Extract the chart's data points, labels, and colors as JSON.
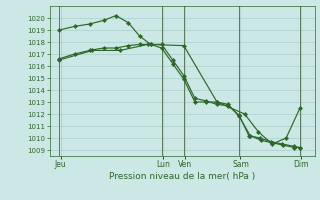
{
  "bg_color": "#cce8e6",
  "grid_color_major": "#aacfcc",
  "grid_color_minor": "#bbdbd8",
  "line_color": "#2d6629",
  "title": "Pression niveau de la mer( hPa )",
  "ylim": [
    1008.5,
    1021.0
  ],
  "yticks": [
    1009,
    1010,
    1011,
    1012,
    1013,
    1014,
    1015,
    1016,
    1017,
    1018,
    1019,
    1020
  ],
  "xlim": [
    -0.05,
    9.55
  ],
  "xtick_labels": [
    "Jeu",
    "Lun",
    "Ven",
    "Sam",
    "Dim"
  ],
  "xtick_positions": [
    0.35,
    4.05,
    4.85,
    6.85,
    9.05
  ],
  "vline_positions": [
    0.3,
    4.0,
    4.8,
    6.8,
    9.0
  ],
  "series1": {
    "x": [
      0.3,
      0.85,
      1.4,
      1.9,
      2.35,
      2.8,
      3.2,
      3.6,
      4.0,
      4.4,
      4.8,
      5.2,
      5.6,
      6.0,
      6.4,
      6.8,
      7.2,
      7.6,
      8.0,
      8.4,
      8.8,
      9.0
    ],
    "y": [
      1019.0,
      1019.3,
      1019.5,
      1019.8,
      1020.2,
      1019.6,
      1018.5,
      1017.8,
      1017.5,
      1016.2,
      1014.9,
      1013.0,
      1013.0,
      1013.0,
      1012.8,
      1011.8,
      1010.2,
      1009.8,
      1009.6,
      1009.4,
      1009.2,
      1009.2
    ]
  },
  "series2": {
    "x": [
      0.3,
      0.85,
      1.4,
      1.9,
      2.35,
      2.8,
      3.2,
      3.6,
      4.0,
      4.4,
      4.8,
      5.2,
      5.6,
      6.0,
      6.4,
      6.8,
      7.15,
      7.55,
      7.95,
      8.35,
      8.8,
      9.0
    ],
    "y": [
      1016.6,
      1017.0,
      1017.3,
      1017.5,
      1017.5,
      1017.7,
      1017.8,
      1017.8,
      1017.8,
      1016.5,
      1015.2,
      1013.3,
      1013.1,
      1012.8,
      1012.7,
      1011.9,
      1010.2,
      1010.0,
      1009.7,
      1009.5,
      1009.3,
      1009.2
    ]
  },
  "series3": {
    "x": [
      0.3,
      1.5,
      2.5,
      3.5,
      4.8,
      6.0,
      7.0,
      7.5,
      8.0,
      8.5,
      9.0
    ],
    "y": [
      1016.5,
      1017.3,
      1017.3,
      1017.8,
      1017.7,
      1013.0,
      1012.0,
      1010.5,
      1009.5,
      1010.0,
      1012.5
    ]
  }
}
